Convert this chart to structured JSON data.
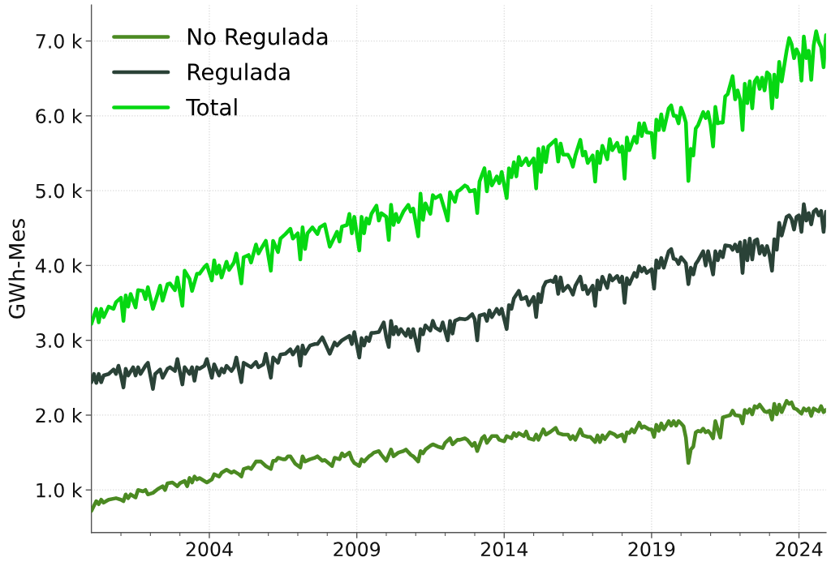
{
  "chart_data": {
    "type": "line",
    "ylabel": "GWh-Mes",
    "legend": "top left",
    "grid": true,
    "line_style": "solid",
    "xlim": [
      "2000-01",
      "2024-12"
    ],
    "xticks": [
      {
        "value": "2001-01",
        "label": null
      },
      {
        "value": "2002-01",
        "label": null
      },
      {
        "value": "2003-01",
        "label": null
      },
      {
        "value": "2004-01",
        "label": "2004"
      },
      {
        "value": "2005-01",
        "label": null
      },
      {
        "value": "2006-01",
        "label": null
      },
      {
        "value": "2007-01",
        "label": null
      },
      {
        "value": "2008-01",
        "label": null
      },
      {
        "value": "2009-01",
        "label": "2009"
      },
      {
        "value": "2010-01",
        "label": null
      },
      {
        "value": "2011-01",
        "label": null
      },
      {
        "value": "2012-01",
        "label": null
      },
      {
        "value": "2013-01",
        "label": null
      },
      {
        "value": "2014-01",
        "label": "2014"
      },
      {
        "value": "2015-01",
        "label": null
      },
      {
        "value": "2016-01",
        "label": null
      },
      {
        "value": "2017-01",
        "label": null
      },
      {
        "value": "2018-01",
        "label": null
      },
      {
        "value": "2019-01",
        "label": "2019"
      },
      {
        "value": "2020-01",
        "label": null
      },
      {
        "value": "2021-01",
        "label": null
      },
      {
        "value": "2022-01",
        "label": null
      },
      {
        "value": "2023-01",
        "label": null
      },
      {
        "value": "2024-01",
        "label": "2024"
      }
    ],
    "ylim": [
      430,
      7480
    ],
    "yticks": [
      {
        "value": 1000,
        "label": "1.0 k"
      },
      {
        "value": 2000,
        "label": "2.0 k"
      },
      {
        "value": 3000,
        "label": "3.0 k"
      },
      {
        "value": 4000,
        "label": "4.0 k"
      },
      {
        "value": 5000,
        "label": "5.0 k"
      },
      {
        "value": 6000,
        "label": "6.0 k"
      },
      {
        "value": 7000,
        "label": "7.0 k"
      }
    ],
    "series": [
      {
        "name": "No Regulada",
        "color": "#4b8a22",
        "x": [
          "2000-01",
          "2000-03",
          "2000-04",
          "2000-05",
          "2000-06",
          "2000-07",
          "2000-08",
          "2000-11",
          "2001-01",
          "2001-02",
          "2001-03",
          "2001-04",
          "2001-05",
          "2001-07",
          "2001-08",
          "2001-10",
          "2001-11",
          "2001-12",
          "2002-02",
          "2002-04",
          "2002-06",
          "2002-07",
          "2002-08",
          "2002-10",
          "2002-12",
          "2003-01",
          "2003-03",
          "2003-04",
          "2003-05",
          "2003-06",
          "2003-07",
          "2003-08",
          "2003-09",
          "2003-12",
          "2004-02",
          "2004-03",
          "2004-05",
          "2004-06",
          "2004-08",
          "2004-10",
          "2004-11",
          "2005-01",
          "2005-02",
          "2005-03",
          "2005-05",
          "2005-06",
          "2005-08",
          "2005-10",
          "2005-12",
          "2006-02",
          "2006-03",
          "2006-04",
          "2006-05",
          "2006-07",
          "2006-08",
          "2006-09",
          "2006-10",
          "2006-12",
          "2007-02",
          "2007-03",
          "2007-04",
          "2007-06",
          "2007-08",
          "2007-09",
          "2007-11",
          "2007-12",
          "2008-03",
          "2008-04",
          "2008-06",
          "2008-07",
          "2008-08",
          "2008-10",
          "2008-11",
          "2008-12",
          "2009-02",
          "2009-03",
          "2009-04",
          "2009-06",
          "2009-07",
          "2009-08",
          "2009-10",
          "2009-11",
          "2010-01",
          "2010-03",
          "2010-04",
          "2010-06",
          "2010-08",
          "2010-09",
          "2010-11",
          "2010-12",
          "2011-02",
          "2011-03",
          "2011-04",
          "2011-05",
          "2011-07",
          "2011-08",
          "2011-10",
          "2011-12",
          "2012-01",
          "2012-03",
          "2012-04",
          "2012-06",
          "2012-07",
          "2012-09",
          "2012-10",
          "2012-12",
          "2013-01",
          "2013-02",
          "2013-04",
          "2013-05",
          "2013-06",
          "2013-08",
          "2013-10",
          "2013-11",
          "2014-01",
          "2014-02",
          "2014-04",
          "2014-05",
          "2014-06",
          "2014-07",
          "2014-09",
          "2014-10",
          "2014-11",
          "2015-01",
          "2015-02",
          "2015-03",
          "2015-05",
          "2015-06",
          "2015-08",
          "2015-10",
          "2015-11",
          "2016-01",
          "2016-03",
          "2016-04",
          "2016-05",
          "2016-06",
          "2016-08",
          "2016-09",
          "2016-11",
          "2016-12",
          "2017-02",
          "2017-03",
          "2017-04",
          "2017-05",
          "2017-06",
          "2017-08",
          "2017-10",
          "2017-11",
          "2018-01",
          "2018-02",
          "2018-03",
          "2018-04",
          "2018-05",
          "2018-06",
          "2018-08",
          "2018-09",
          "2018-10",
          "2018-12",
          "2019-01",
          "2019-02",
          "2019-03",
          "2019-04",
          "2019-05",
          "2019-06",
          "2019-07",
          "2019-08",
          "2019-09",
          "2019-10",
          "2019-11",
          "2019-12",
          "2020-01",
          "2020-02",
          "2020-03",
          "2020-04",
          "2020-05",
          "2020-06",
          "2020-07",
          "2020-08",
          "2020-09",
          "2020-10",
          "2020-11",
          "2020-12",
          "2021-01",
          "2021-02",
          "2021-03",
          "2021-05",
          "2021-06",
          "2021-08",
          "2021-09",
          "2021-10",
          "2021-11",
          "2022-01",
          "2022-02",
          "2022-03",
          "2022-04",
          "2022-05",
          "2022-06",
          "2022-07",
          "2022-08",
          "2022-09",
          "2022-11",
          "2022-12",
          "2023-01",
          "2023-02",
          "2023-03",
          "2023-04",
          "2023-05",
          "2023-06",
          "2023-08",
          "2023-09",
          "2023-10",
          "2023-11",
          "2023-12",
          "2024-02",
          "2024-03",
          "2024-04",
          "2024-05",
          "2024-06",
          "2024-07",
          "2024-08",
          "2024-09",
          "2024-10",
          "2024-11",
          "2024-12"
        ],
        "values": [
          720,
          850,
          810,
          870,
          830,
          850,
          870,
          890,
          870,
          850,
          940,
          890,
          940,
          900,
          1000,
          980,
          1000,
          940,
          960,
          1010,
          1050,
          1000,
          1090,
          1100,
          1050,
          1090,
          1120,
          1050,
          1160,
          1100,
          1180,
          1140,
          1160,
          1100,
          1140,
          1210,
          1180,
          1230,
          1270,
          1230,
          1250,
          1210,
          1180,
          1280,
          1300,
          1280,
          1380,
          1380,
          1320,
          1280,
          1390,
          1390,
          1430,
          1410,
          1410,
          1450,
          1450,
          1350,
          1300,
          1450,
          1380,
          1410,
          1430,
          1450,
          1390,
          1400,
          1320,
          1430,
          1410,
          1490,
          1450,
          1500,
          1410,
          1360,
          1320,
          1410,
          1380,
          1450,
          1470,
          1500,
          1520,
          1470,
          1390,
          1540,
          1450,
          1500,
          1520,
          1540,
          1470,
          1450,
          1380,
          1520,
          1490,
          1540,
          1590,
          1610,
          1580,
          1560,
          1630,
          1690,
          1610,
          1670,
          1670,
          1690,
          1670,
          1590,
          1630,
          1520,
          1690,
          1720,
          1630,
          1720,
          1720,
          1670,
          1650,
          1720,
          1690,
          1760,
          1720,
          1760,
          1720,
          1780,
          1690,
          1670,
          1740,
          1670,
          1810,
          1740,
          1780,
          1830,
          1760,
          1740,
          1740,
          1680,
          1720,
          1670,
          1810,
          1730,
          1710,
          1710,
          1640,
          1730,
          1640,
          1730,
          1680,
          1770,
          1740,
          1710,
          1740,
          1650,
          1770,
          1760,
          1810,
          1770,
          1900,
          1830,
          1850,
          1810,
          1810,
          1710,
          1870,
          1790,
          1890,
          1810,
          1860,
          1920,
          1860,
          1920,
          1860,
          1920,
          1890,
          1850,
          1700,
          1360,
          1540,
          1580,
          1770,
          1790,
          1780,
          1820,
          1770,
          1790,
          1750,
          1690,
          1920,
          1700,
          1970,
          1990,
          2000,
          2060,
          2000,
          1990,
          1890,
          2070,
          2030,
          2080,
          2010,
          2120,
          2100,
          2140,
          2050,
          2040,
          2060,
          1940,
          2150,
          2010,
          2140,
          2040,
          2190,
          2150,
          2170,
          2090,
          2080,
          2020,
          2090,
          2060,
          2090,
          1990,
          2090,
          2070,
          2050,
          2120,
          2040,
          2070
        ]
      },
      {
        "name": "Regulada",
        "color": "#2a4237",
        "x": [
          "2000-01",
          "2000-02",
          "2000-03",
          "2000-04",
          "2000-05",
          "2000-06",
          "2000-08",
          "2000-10",
          "2000-11",
          "2000-12",
          "2001-01",
          "2001-02",
          "2001-03",
          "2001-04",
          "2001-06",
          "2001-07",
          "2001-08",
          "2001-09",
          "2001-11",
          "2001-12",
          "2002-02",
          "2002-03",
          "2002-05",
          "2002-06",
          "2002-08",
          "2002-09",
          "2002-11",
          "2002-12",
          "2003-02",
          "2003-03",
          "2003-05",
          "2003-06",
          "2003-07",
          "2003-08",
          "2003-09",
          "2003-11",
          "2003-12",
          "2004-02",
          "2004-03",
          "2004-05",
          "2004-06",
          "2004-07",
          "2004-08",
          "2004-10",
          "2004-11",
          "2004-12",
          "2005-02",
          "2005-03",
          "2005-04",
          "2005-06",
          "2005-08",
          "2005-09",
          "2005-11",
          "2005-12",
          "2006-02",
          "2006-03",
          "2006-05",
          "2006-06",
          "2006-08",
          "2006-10",
          "2006-11",
          "2007-01",
          "2007-02",
          "2007-03",
          "2007-04",
          "2007-06",
          "2007-08",
          "2007-09",
          "2007-11",
          "2008-02",
          "2008-04",
          "2008-05",
          "2008-07",
          "2008-10",
          "2008-11",
          "2008-12",
          "2009-02",
          "2009-03",
          "2009-04",
          "2009-05",
          "2009-06",
          "2009-07",
          "2009-08",
          "2009-10",
          "2009-12",
          "2010-01",
          "2010-02",
          "2010-03",
          "2010-04",
          "2010-05",
          "2010-06",
          "2010-07",
          "2010-09",
          "2010-10",
          "2010-11",
          "2010-12",
          "2011-02",
          "2011-03",
          "2011-04",
          "2011-05",
          "2011-07",
          "2011-08",
          "2011-09",
          "2011-11",
          "2011-12",
          "2012-02",
          "2012-03",
          "2012-04",
          "2012-05",
          "2012-07",
          "2012-09",
          "2012-10",
          "2012-12",
          "2013-01",
          "2013-02",
          "2013-03",
          "2013-05",
          "2013-06",
          "2013-07",
          "2013-08",
          "2013-10",
          "2013-11",
          "2013-12",
          "2014-02",
          "2014-03",
          "2014-04",
          "2014-05",
          "2014-07",
          "2014-08",
          "2014-09",
          "2014-10",
          "2014-11",
          "2015-01",
          "2015-02",
          "2015-03",
          "2015-04",
          "2015-05",
          "2015-06",
          "2015-08",
          "2015-09",
          "2015-10",
          "2015-11",
          "2015-12",
          "2016-01",
          "2016-03",
          "2016-04",
          "2016-05",
          "2016-06",
          "2016-08",
          "2016-09",
          "2016-10",
          "2016-11",
          "2017-01",
          "2017-02",
          "2017-03",
          "2017-04",
          "2017-05",
          "2017-07",
          "2017-08",
          "2017-09",
          "2017-11",
          "2017-12",
          "2018-01",
          "2018-02",
          "2018-03",
          "2018-04",
          "2018-06",
          "2018-07",
          "2018-08",
          "2018-09",
          "2018-10",
          "2018-11",
          "2019-01",
          "2019-02",
          "2019-03",
          "2019-04",
          "2019-05",
          "2019-06",
          "2019-08",
          "2019-09",
          "2019-10",
          "2019-11",
          "2019-12",
          "2020-01",
          "2020-02",
          "2020-03",
          "2020-04",
          "2020-05",
          "2020-06",
          "2020-07",
          "2020-08",
          "2020-10",
          "2020-11",
          "2020-12",
          "2021-01",
          "2021-02",
          "2021-03",
          "2021-04",
          "2021-05",
          "2021-06",
          "2021-07",
          "2021-09",
          "2021-10",
          "2021-11",
          "2021-12",
          "2022-01",
          "2022-02",
          "2022-03",
          "2022-04",
          "2022-05",
          "2022-06",
          "2022-07",
          "2022-08",
          "2022-09",
          "2022-10",
          "2022-11",
          "2022-12",
          "2023-01",
          "2023-02",
          "2023-03",
          "2023-04",
          "2023-05",
          "2023-06",
          "2023-08",
          "2023-09",
          "2023-10",
          "2023-11",
          "2023-12",
          "2024-01",
          "2024-02",
          "2024-03",
          "2024-04",
          "2024-05",
          "2024-06",
          "2024-07",
          "2024-08",
          "2024-09",
          "2024-10",
          "2024-11",
          "2024-12"
        ],
        "values": [
          2440,
          2550,
          2430,
          2550,
          2440,
          2530,
          2550,
          2610,
          2550,
          2660,
          2530,
          2370,
          2620,
          2530,
          2640,
          2530,
          2640,
          2550,
          2660,
          2700,
          2350,
          2550,
          2610,
          2500,
          2620,
          2640,
          2590,
          2750,
          2410,
          2640,
          2550,
          2640,
          2460,
          2640,
          2620,
          2660,
          2750,
          2500,
          2680,
          2530,
          2620,
          2570,
          2660,
          2590,
          2640,
          2770,
          2440,
          2700,
          2680,
          2640,
          2710,
          2640,
          2680,
          2820,
          2500,
          2770,
          2700,
          2810,
          2820,
          2880,
          2810,
          2910,
          2660,
          2930,
          2820,
          2930,
          2950,
          2950,
          3040,
          2820,
          2970,
          2930,
          3000,
          3060,
          2950,
          3110,
          2770,
          3030,
          2930,
          3040,
          2990,
          3100,
          3100,
          3110,
          3240,
          3040,
          2910,
          3260,
          3080,
          3180,
          3080,
          3150,
          3060,
          3150,
          3040,
          3150,
          2860,
          3150,
          3080,
          3200,
          3130,
          3260,
          3170,
          3130,
          3240,
          3000,
          3260,
          3090,
          3260,
          3290,
          3280,
          3290,
          3350,
          3280,
          3000,
          3330,
          3350,
          3260,
          3400,
          3310,
          3420,
          3350,
          3420,
          3150,
          3470,
          3420,
          3560,
          3660,
          3550,
          3560,
          3580,
          3470,
          3580,
          3310,
          3620,
          3510,
          3710,
          3780,
          3800,
          3780,
          3850,
          3620,
          3840,
          3660,
          3730,
          3680,
          3610,
          3730,
          3850,
          3680,
          3730,
          3620,
          3730,
          3460,
          3800,
          3680,
          3850,
          3700,
          3870,
          3800,
          3860,
          3780,
          3850,
          3500,
          3830,
          3750,
          3900,
          3850,
          3990,
          3920,
          3970,
          3900,
          3950,
          3690,
          4070,
          3970,
          4100,
          3970,
          4190,
          4220,
          4090,
          4080,
          4020,
          4110,
          4070,
          4030,
          3750,
          3970,
          3880,
          4020,
          4070,
          4190,
          4000,
          4190,
          4040,
          3880,
          4190,
          4070,
          4190,
          4110,
          4270,
          4260,
          4210,
          4280,
          4190,
          4310,
          3900,
          4330,
          4070,
          4360,
          4080,
          4330,
          4350,
          4160,
          4260,
          4140,
          4260,
          4140,
          3930,
          4350,
          4210,
          4570,
          4400,
          4650,
          4670,
          4620,
          4480,
          4650,
          4670,
          4450,
          4820,
          4600,
          4700,
          4550,
          4720,
          4750,
          4670,
          4730,
          4450,
          4720
        ]
      },
      {
        "name": "Total",
        "color": "#06d812",
        "x": [
          "2000-01",
          "2000-03",
          "2000-04",
          "2000-05",
          "2000-06",
          "2000-08",
          "2000-10",
          "2000-11",
          "2001-01",
          "2001-02",
          "2001-03",
          "2001-04",
          "2001-05",
          "2001-07",
          "2001-08",
          "2001-10",
          "2001-11",
          "2001-12",
          "2002-02",
          "2002-04",
          "2002-05",
          "2002-06",
          "2002-08",
          "2002-09",
          "2002-11",
          "2002-12",
          "2003-02",
          "2003-03",
          "2003-05",
          "2003-06",
          "2003-08",
          "2003-09",
          "2003-11",
          "2003-12",
          "2004-02",
          "2004-03",
          "2004-04",
          "2004-05",
          "2004-06",
          "2004-08",
          "2004-09",
          "2004-11",
          "2004-12",
          "2005-02",
          "2005-03",
          "2005-05",
          "2005-06",
          "2005-08",
          "2005-09",
          "2005-10",
          "2005-12",
          "2006-02",
          "2006-03",
          "2006-05",
          "2006-06",
          "2006-08",
          "2006-10",
          "2006-11",
          "2007-01",
          "2007-02",
          "2007-03",
          "2007-04",
          "2007-05",
          "2007-07",
          "2007-09",
          "2007-10",
          "2007-12",
          "2008-02",
          "2008-05",
          "2008-06",
          "2008-07",
          "2008-09",
          "2008-10",
          "2008-11",
          "2008-12",
          "2009-02",
          "2009-03",
          "2009-04",
          "2009-05",
          "2009-06",
          "2009-07",
          "2009-09",
          "2009-10",
          "2009-11",
          "2010-01",
          "2010-02",
          "2010-03",
          "2010-04",
          "2010-05",
          "2010-06",
          "2010-08",
          "2010-10",
          "2010-11",
          "2010-12",
          "2011-02",
          "2011-03",
          "2011-04",
          "2011-05",
          "2011-07",
          "2011-08",
          "2011-09",
          "2011-11",
          "2012-01",
          "2012-02",
          "2012-03",
          "2012-05",
          "2012-06",
          "2012-07",
          "2012-09",
          "2012-10",
          "2012-11",
          "2013-01",
          "2013-02",
          "2013-03",
          "2013-05",
          "2013-06",
          "2013-07",
          "2013-08",
          "2013-10",
          "2013-11",
          "2013-12",
          "2014-02",
          "2014-03",
          "2014-04",
          "2014-05",
          "2014-06",
          "2014-07",
          "2014-08",
          "2014-10",
          "2014-11",
          "2015-01",
          "2015-02",
          "2015-03",
          "2015-04",
          "2015-05",
          "2015-06",
          "2015-07",
          "2015-10",
          "2015-11",
          "2015-12",
          "2016-01",
          "2016-03",
          "2016-04",
          "2016-05",
          "2016-06",
          "2016-08",
          "2016-09",
          "2016-10",
          "2016-11",
          "2017-01",
          "2017-02",
          "2017-03",
          "2017-04",
          "2017-05",
          "2017-07",
          "2017-08",
          "2017-09",
          "2017-11",
          "2017-12",
          "2018-01",
          "2018-02",
          "2018-03",
          "2018-04",
          "2018-06",
          "2018-07",
          "2018-08",
          "2018-09",
          "2018-10",
          "2018-11",
          "2019-01",
          "2019-02",
          "2019-03",
          "2019-04",
          "2019-05",
          "2019-06",
          "2019-08",
          "2019-09",
          "2019-10",
          "2019-11",
          "2019-12",
          "2020-01",
          "2020-02",
          "2020-03",
          "2020-04",
          "2020-05",
          "2020-06",
          "2020-07",
          "2020-08",
          "2020-10",
          "2020-11",
          "2020-12",
          "2021-01",
          "2021-02",
          "2021-03",
          "2021-04",
          "2021-05",
          "2021-06",
          "2021-07",
          "2021-08",
          "2021-10",
          "2021-11",
          "2021-12",
          "2022-01",
          "2022-02",
          "2022-03",
          "2022-04",
          "2022-05",
          "2022-06",
          "2022-07",
          "2022-08",
          "2022-09",
          "2022-10",
          "2022-11",
          "2022-12",
          "2023-01",
          "2023-02",
          "2023-03",
          "2023-04",
          "2023-05",
          "2023-06",
          "2023-08",
          "2023-09",
          "2023-10",
          "2023-11",
          "2023-12",
          "2024-01",
          "2024-02",
          "2024-03",
          "2024-04",
          "2024-05",
          "2024-06",
          "2024-07",
          "2024-08",
          "2024-09",
          "2024-10",
          "2024-11",
          "2024-12"
        ],
        "values": [
          3220,
          3420,
          3240,
          3420,
          3310,
          3450,
          3420,
          3510,
          3570,
          3260,
          3600,
          3450,
          3620,
          3440,
          3670,
          3660,
          3550,
          3710,
          3420,
          3620,
          3730,
          3530,
          3750,
          3760,
          3670,
          3840,
          3460,
          3930,
          3820,
          3660,
          3890,
          3890,
          3980,
          4010,
          3800,
          4070,
          3890,
          4000,
          3840,
          4050,
          3940,
          4040,
          4160,
          3760,
          4110,
          4140,
          4040,
          4280,
          4160,
          4220,
          4330,
          3930,
          4330,
          4180,
          4360,
          4420,
          4490,
          4360,
          4430,
          4080,
          4510,
          4220,
          4430,
          4510,
          4420,
          4510,
          4550,
          4250,
          4450,
          4320,
          4520,
          4540,
          4690,
          4430,
          4650,
          4200,
          4650,
          4430,
          4630,
          4560,
          4690,
          4800,
          4600,
          4700,
          4650,
          4340,
          4810,
          4540,
          4690,
          4580,
          4720,
          4810,
          4720,
          4760,
          4390,
          4960,
          4610,
          4830,
          4690,
          4940,
          4900,
          4940,
          4720,
          4600,
          4980,
          4850,
          4990,
          5010,
          5070,
          5050,
          4990,
          5010,
          4700,
          5120,
          5300,
          4990,
          5250,
          5070,
          5190,
          5100,
          5250,
          4900,
          5300,
          5180,
          5380,
          5190,
          5450,
          5340,
          5430,
          5340,
          5430,
          5030,
          5560,
          5250,
          5580,
          5380,
          5590,
          5680,
          5390,
          5630,
          5480,
          5480,
          5420,
          5320,
          5470,
          5680,
          5470,
          5520,
          5370,
          5470,
          5120,
          5520,
          5370,
          5600,
          5420,
          5690,
          5540,
          5640,
          5520,
          5590,
          5160,
          5710,
          5540,
          5720,
          5640,
          5900,
          5730,
          5900,
          5780,
          5770,
          5440,
          5950,
          5810,
          6020,
          5810,
          6100,
          6140,
          6000,
          6000,
          5900,
          6110,
          6020,
          5910,
          5130,
          5560,
          5470,
          5830,
          5880,
          6050,
          5970,
          6050,
          5880,
          5590,
          6120,
          5900,
          5910,
          5910,
          6260,
          6290,
          6530,
          6220,
          6340,
          6220,
          5810,
          6430,
          6170,
          6460,
          6100,
          6460,
          6510,
          6360,
          6510,
          6340,
          6580,
          6550,
          6100,
          6550,
          6250,
          6720,
          6460,
          6870,
          7040,
          6960,
          6770,
          6890,
          6820,
          6470,
          7060,
          6770,
          6870,
          6480,
          6940,
          7130,
          6990,
          6920,
          6650,
          7080
        ]
      }
    ]
  }
}
